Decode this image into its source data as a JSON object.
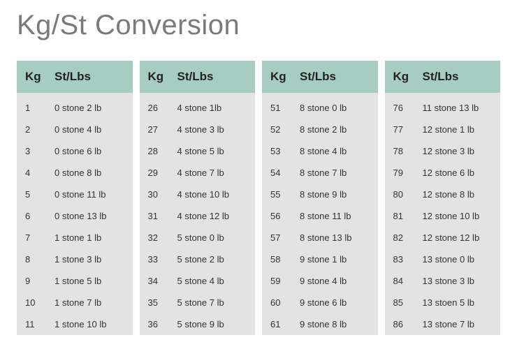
{
  "title": "Kg/St Conversion",
  "header_bg": "#a7cdc3",
  "body_bg": "#e3e3e3",
  "text_color": "#333333",
  "title_color": "#7a7a7a",
  "header_labels": {
    "kg": "Kg",
    "stlbs": "St/Lbs"
  },
  "columns": [
    {
      "rows": [
        {
          "kg": "1",
          "st": "0 stone 2 lb"
        },
        {
          "kg": "2",
          "st": "0 stone 4 lb"
        },
        {
          "kg": "3",
          "st": "0 stone 6 lb"
        },
        {
          "kg": "4",
          "st": "0 stone 8 lb"
        },
        {
          "kg": "5",
          "st": "0 stone 11 lb"
        },
        {
          "kg": "6",
          "st": "0 stone 13 lb"
        },
        {
          "kg": "7",
          "st": "1 stone 1 lb"
        },
        {
          "kg": "8",
          "st": "1 stone 3 lb"
        },
        {
          "kg": "9",
          "st": "1 stone 5 lb"
        },
        {
          "kg": "10",
          "st": "1 stone 7 lb"
        },
        {
          "kg": "11",
          "st": "1 stone 10 lb"
        }
      ]
    },
    {
      "rows": [
        {
          "kg": "26",
          "st": "4 stone 1lb"
        },
        {
          "kg": "27",
          "st": "4 stone 3 lb"
        },
        {
          "kg": "28",
          "st": "4 stone 5 lb"
        },
        {
          "kg": "29",
          "st": "4 stone 7 lb"
        },
        {
          "kg": "30",
          "st": "4 stone 10 lb"
        },
        {
          "kg": "31",
          "st": "4 stone 12 lb"
        },
        {
          "kg": "32",
          "st": "5 stone 0 lb"
        },
        {
          "kg": "33",
          "st": "5 stone 2 lb"
        },
        {
          "kg": "34",
          "st": "5 stone 4 lb"
        },
        {
          "kg": "35",
          "st": "5 stone 7 lb"
        },
        {
          "kg": "36",
          "st": "5 stone 9 lb"
        }
      ]
    },
    {
      "rows": [
        {
          "kg": "51",
          "st": "8 stone 0 lb"
        },
        {
          "kg": "52",
          "st": "8 stone 2 lb"
        },
        {
          "kg": "53",
          "st": "8 stone 4 lb"
        },
        {
          "kg": "54",
          "st": "8 stone 7 lb"
        },
        {
          "kg": "55",
          "st": "8 stone 9 lb"
        },
        {
          "kg": "56",
          "st": "8 stone 11 lb"
        },
        {
          "kg": "57",
          "st": "8 stone 13 lb"
        },
        {
          "kg": "58",
          "st": "9 stone 1 lb"
        },
        {
          "kg": "59",
          "st": "9 stone 4 lb"
        },
        {
          "kg": "60",
          "st": "9 stone 6 lb"
        },
        {
          "kg": "61",
          "st": "9 stone 8 lb"
        }
      ]
    },
    {
      "rows": [
        {
          "kg": "76",
          "st": "11 stone 13 lb"
        },
        {
          "kg": "77",
          "st": "12 stone 1 lb"
        },
        {
          "kg": "78",
          "st": "12 stone 3 lb"
        },
        {
          "kg": "79",
          "st": "12 stone 6 lb"
        },
        {
          "kg": "80",
          "st": "12 stone 8 lb"
        },
        {
          "kg": "81",
          "st": "12 stone 10 lb"
        },
        {
          "kg": "82",
          "st": "12 stone 12 lb"
        },
        {
          "kg": "83",
          "st": "13 stone 0 lb"
        },
        {
          "kg": "84",
          "st": "13 stone 3 lb"
        },
        {
          "kg": "85",
          "st": "13 stoen 5 lb"
        },
        {
          "kg": "86",
          "st": "13 stone 7 lb"
        }
      ]
    }
  ]
}
